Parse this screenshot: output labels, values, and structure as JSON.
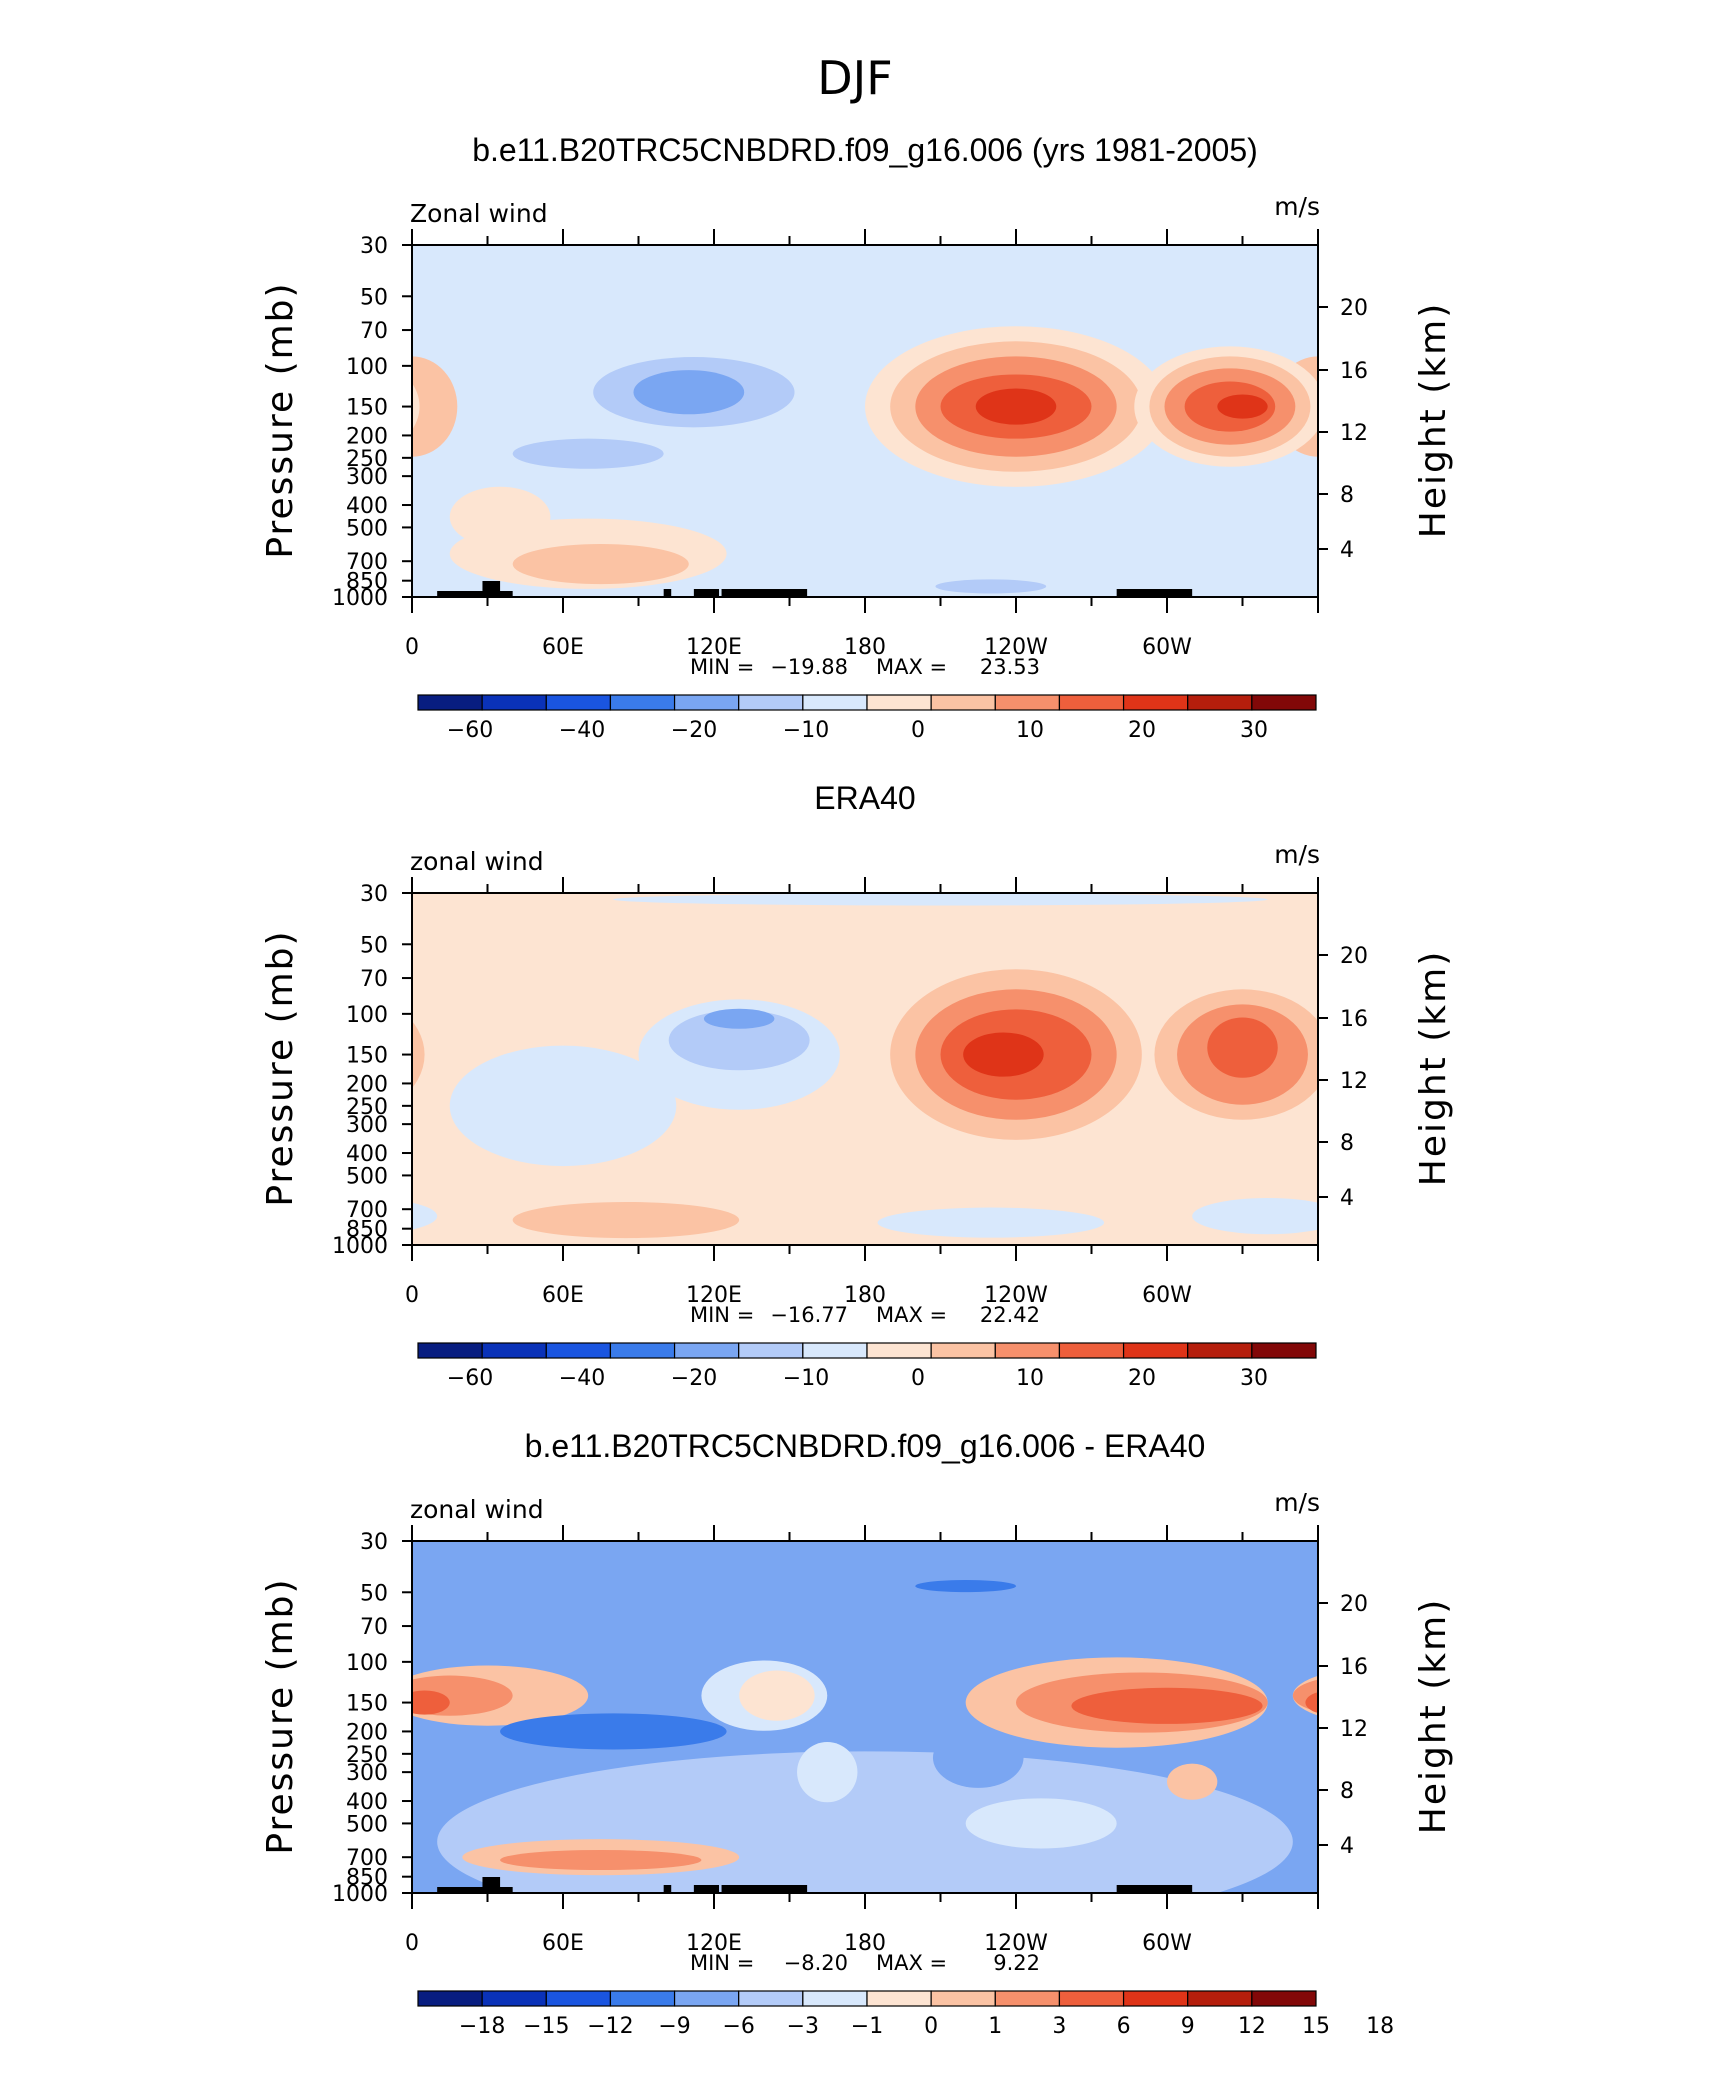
{
  "figure": {
    "title": "DJF"
  },
  "colors": {
    "levels_a": [
      "#081d80",
      "#0a32b8",
      "#1a55e0",
      "#3a7bea",
      "#7aa6f2",
      "#b3cbf8",
      "#d8e8fc",
      "#fde4d2",
      "#fbc3a4",
      "#f6906c",
      "#ee5f3c",
      "#df3418",
      "#b51e0c",
      "#820808"
    ],
    "levels_b": [
      "#081d80",
      "#0a32b8",
      "#1a55e0",
      "#3a7bea",
      "#7aa6f2",
      "#b3cbf8",
      "#d8e8fc",
      "#fde4d2",
      "#fbc3a4",
      "#f6906c",
      "#ee5f3c",
      "#df3418",
      "#b51e0c",
      "#820808"
    ]
  },
  "chart_data": [
    {
      "type": "contour",
      "title": "b.e11.B20TRC5CNBDRD.f09_g16.006 (yrs 1981-2005)",
      "left_label": "Zonal wind",
      "units": "m/s",
      "ylabel": "Pressure (mb)",
      "ylabel_right": "Height (km)",
      "yticks": [
        "30",
        "50",
        "70",
        "100",
        "150",
        "200",
        "250",
        "300",
        "400",
        "500",
        "700",
        "850",
        "1000"
      ],
      "yticks_right": [
        "20",
        "16",
        "12",
        "8",
        "4"
      ],
      "xticks": [
        "0",
        "60E",
        "120E",
        "180",
        "120W",
        "60W"
      ],
      "min_label": "MIN =",
      "min_value": "−19.88",
      "max_label": "MAX =",
      "max_value": "23.53",
      "colorbar_labels": [
        "−60",
        "−40",
        "−20",
        "−10",
        "0",
        "10",
        "20",
        "30"
      ],
      "background_level": 6,
      "blobs": [
        {
          "lon": 0,
          "p": 150,
          "level": 8,
          "rx": 18,
          "ry": 0.5
        },
        {
          "lon": 112,
          "p": 130,
          "level": 5,
          "rx": 40,
          "ry": 0.35
        },
        {
          "lon": 110,
          "p": 130,
          "level": 4,
          "rx": 22,
          "ry": 0.22
        },
        {
          "lon": 70,
          "p": 240,
          "level": 5,
          "rx": 30,
          "ry": 0.15
        },
        {
          "lon": 240,
          "p": 150,
          "level": 7,
          "rx": 60,
          "ry": 0.8
        },
        {
          "lon": 240,
          "p": 150,
          "level": 8,
          "rx": 50,
          "ry": 0.65
        },
        {
          "lon": 240,
          "p": 150,
          "level": 9,
          "rx": 40,
          "ry": 0.5
        },
        {
          "lon": 240,
          "p": 150,
          "level": 10,
          "rx": 30,
          "ry": 0.32
        },
        {
          "lon": 240,
          "p": 150,
          "level": 11,
          "rx": 16,
          "ry": 0.18
        },
        {
          "lon": 325,
          "p": 150,
          "level": 7,
          "rx": 38,
          "ry": 0.6
        },
        {
          "lon": 325,
          "p": 150,
          "level": 8,
          "rx": 32,
          "ry": 0.5
        },
        {
          "lon": 325,
          "p": 150,
          "level": 9,
          "rx": 26,
          "ry": 0.38
        },
        {
          "lon": 325,
          "p": 150,
          "level": 10,
          "rx": 18,
          "ry": 0.25
        },
        {
          "lon": 330,
          "p": 150,
          "level": 11,
          "rx": 10,
          "ry": 0.12
        },
        {
          "lon": 70,
          "p": 650,
          "level": 7,
          "rx": 55,
          "ry": 0.35
        },
        {
          "lon": 75,
          "p": 720,
          "level": 8,
          "rx": 35,
          "ry": 0.2
        },
        {
          "lon": 230,
          "p": 900,
          "level": 5,
          "rx": 22,
          "ry": 0.07
        },
        {
          "lon": 35,
          "p": 450,
          "level": 7,
          "rx": 20,
          "ry": 0.3
        }
      ],
      "topography": true
    },
    {
      "type": "contour",
      "title": "ERA40",
      "left_label": "zonal wind",
      "units": "m/s",
      "ylabel": "Pressure (mb)",
      "ylabel_right": "Height (km)",
      "yticks": [
        "30",
        "50",
        "70",
        "100",
        "150",
        "200",
        "250",
        "300",
        "400",
        "500",
        "700",
        "850",
        "1000"
      ],
      "yticks_right": [
        "20",
        "16",
        "12",
        "8",
        "4"
      ],
      "xticks": [
        "0",
        "60E",
        "120E",
        "180",
        "120W",
        "60W"
      ],
      "min_label": "MIN =",
      "min_value": "−16.77",
      "max_label": "MAX =",
      "max_value": "22.42",
      "colorbar_labels": [
        "−60",
        "−40",
        "−20",
        "−10",
        "0",
        "10",
        "20",
        "30"
      ],
      "background_level": 7,
      "blobs": [
        {
          "lon": 60,
          "p": 250,
          "level": 6,
          "rx": 45,
          "ry": 0.6
        },
        {
          "lon": 130,
          "p": 150,
          "level": 6,
          "rx": 40,
          "ry": 0.55
        },
        {
          "lon": 130,
          "p": 130,
          "level": 5,
          "rx": 28,
          "ry": 0.3
        },
        {
          "lon": 130,
          "p": 105,
          "level": 4,
          "rx": 14,
          "ry": 0.1
        },
        {
          "lon": 240,
          "p": 150,
          "level": 8,
          "rx": 50,
          "ry": 0.85
        },
        {
          "lon": 240,
          "p": 150,
          "level": 9,
          "rx": 40,
          "ry": 0.65
        },
        {
          "lon": 240,
          "p": 150,
          "level": 10,
          "rx": 30,
          "ry": 0.45
        },
        {
          "lon": 235,
          "p": 150,
          "level": 11,
          "rx": 16,
          "ry": 0.22
        },
        {
          "lon": 330,
          "p": 150,
          "level": 8,
          "rx": 35,
          "ry": 0.65
        },
        {
          "lon": 330,
          "p": 150,
          "level": 9,
          "rx": 26,
          "ry": 0.5
        },
        {
          "lon": 330,
          "p": 140,
          "level": 10,
          "rx": 14,
          "ry": 0.3
        },
        {
          "lon": 85,
          "p": 780,
          "level": 8,
          "rx": 45,
          "ry": 0.18
        },
        {
          "lon": 230,
          "p": 800,
          "level": 6,
          "rx": 45,
          "ry": 0.15
        },
        {
          "lon": 340,
          "p": 750,
          "level": 6,
          "rx": 30,
          "ry": 0.18
        },
        {
          "lon": 210,
          "p": 32,
          "level": 6,
          "rx": 130,
          "ry": 0.06
        }
      ],
      "topography": false
    },
    {
      "type": "contour",
      "title": "b.e11.B20TRC5CNBDRD.f09_g16.006 - ERA40",
      "left_label": "zonal wind",
      "units": "m/s",
      "ylabel": "Pressure (mb)",
      "ylabel_right": "Height (km)",
      "yticks": [
        "30",
        "50",
        "70",
        "100",
        "150",
        "200",
        "250",
        "300",
        "400",
        "500",
        "700",
        "850",
        "1000"
      ],
      "yticks_right": [
        "20",
        "16",
        "12",
        "8",
        "4"
      ],
      "xticks": [
        "0",
        "60E",
        "120E",
        "180",
        "120W",
        "60W"
      ],
      "min_label": "MIN =",
      "min_value": "−8.20",
      "max_label": "MAX =",
      "max_value": "9.22",
      "colorbar_labels": [
        "−18",
        "−15",
        "−12",
        "−9",
        "−6",
        "−3",
        "−1",
        "0",
        "1",
        "3",
        "6",
        "9",
        "12",
        "15",
        "18"
      ],
      "background_level": 4,
      "blobs": [
        {
          "lon": 180,
          "p": 600,
          "level": 5,
          "rx": 170,
          "ry": 0.9
        },
        {
          "lon": 30,
          "p": 140,
          "level": 8,
          "rx": 40,
          "ry": 0.3
        },
        {
          "lon": 15,
          "p": 140,
          "level": 9,
          "rx": 25,
          "ry": 0.2
        },
        {
          "lon": 5,
          "p": 150,
          "level": 10,
          "rx": 10,
          "ry": 0.12
        },
        {
          "lon": 80,
          "p": 200,
          "level": 3,
          "rx": 45,
          "ry": 0.18
        },
        {
          "lon": 140,
          "p": 140,
          "level": 6,
          "rx": 25,
          "ry": 0.35
        },
        {
          "lon": 145,
          "p": 140,
          "level": 7,
          "rx": 15,
          "ry": 0.25
        },
        {
          "lon": 220,
          "p": 47,
          "level": 3,
          "rx": 20,
          "ry": 0.06
        },
        {
          "lon": 280,
          "p": 150,
          "level": 8,
          "rx": 60,
          "ry": 0.45
        },
        {
          "lon": 290,
          "p": 150,
          "level": 9,
          "rx": 50,
          "ry": 0.3
        },
        {
          "lon": 300,
          "p": 155,
          "level": 10,
          "rx": 38,
          "ry": 0.18
        },
        {
          "lon": 75,
          "p": 700,
          "level": 8,
          "rx": 55,
          "ry": 0.18
        },
        {
          "lon": 75,
          "p": 720,
          "level": 9,
          "rx": 40,
          "ry": 0.1
        },
        {
          "lon": 310,
          "p": 330,
          "level": 8,
          "rx": 10,
          "ry": 0.18
        },
        {
          "lon": 225,
          "p": 260,
          "level": 4,
          "rx": 18,
          "ry": 0.3
        },
        {
          "lon": 250,
          "p": 500,
          "level": 6,
          "rx": 30,
          "ry": 0.25
        },
        {
          "lon": 165,
          "p": 300,
          "level": 6,
          "rx": 12,
          "ry": 0.3
        }
      ],
      "topography": true
    }
  ]
}
